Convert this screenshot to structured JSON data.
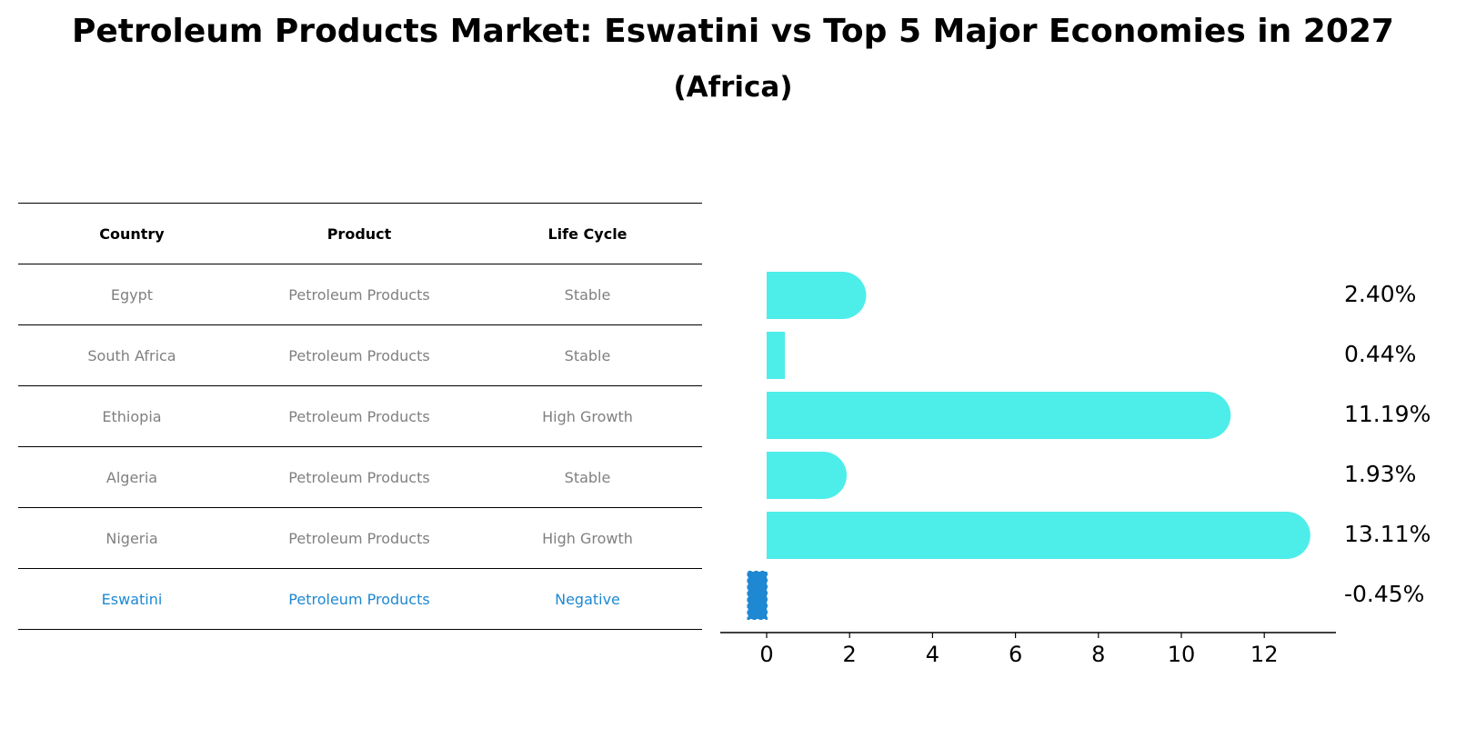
{
  "title": "Petroleum Products Market: Eswatini vs Top 5 Major Economies in 2027",
  "subtitle": "(Africa)",
  "table": {
    "headers": [
      "Country",
      "Product",
      "Life Cycle"
    ],
    "rows": [
      {
        "country": "Egypt",
        "product": "Petroleum Products",
        "life_cycle": "Stable"
      },
      {
        "country": "South Africa",
        "product": "Petroleum Products",
        "life_cycle": "Stable"
      },
      {
        "country": "Ethiopia",
        "product": "Petroleum Products",
        "life_cycle": "High Growth"
      },
      {
        "country": "Algeria",
        "product": "Petroleum Products",
        "life_cycle": "Stable"
      },
      {
        "country": "Nigeria",
        "product": "Petroleum Products",
        "life_cycle": "High Growth"
      },
      {
        "country": "Eswatini",
        "product": "Petroleum Products",
        "life_cycle": "Negative"
      }
    ]
  },
  "colors": {
    "bar": "#4dedea",
    "highlight": "#1e88d2",
    "muted_text": "#808080"
  },
  "chart_data": {
    "type": "bar",
    "orientation": "horizontal",
    "categories": [
      "Egypt",
      "South Africa",
      "Ethiopia",
      "Algeria",
      "Nigeria",
      "Eswatini"
    ],
    "values": [
      2.4,
      0.44,
      11.19,
      1.93,
      13.11,
      -0.45
    ],
    "value_labels": [
      "2.40%",
      "0.44%",
      "11.19%",
      "1.93%",
      "13.11%",
      "-0.45%"
    ],
    "highlight": "Eswatini",
    "xticks": [
      0,
      2,
      4,
      6,
      8,
      10,
      12
    ],
    "xlim": [
      -1.1,
      13.75
    ],
    "grid": false
  }
}
